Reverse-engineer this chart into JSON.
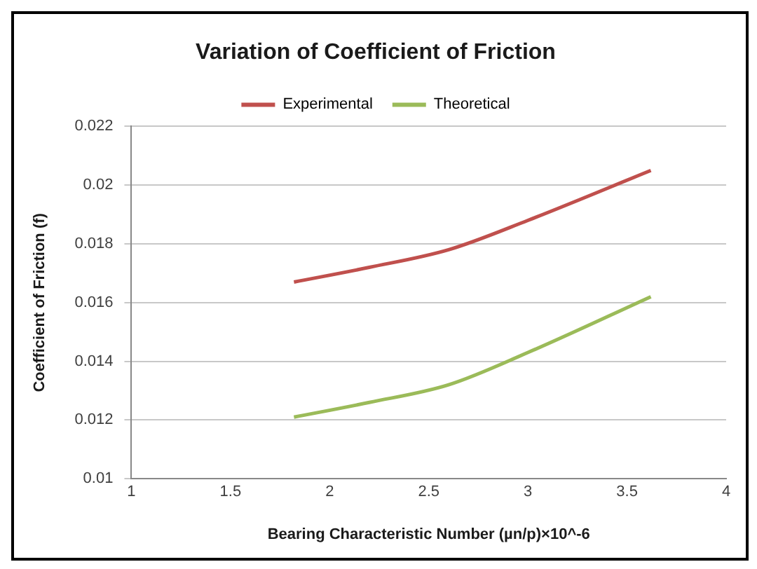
{
  "chart_data": {
    "type": "line",
    "title": "Variation of Coefficient of Friction",
    "xlabel": "Bearing Characteristic Number (µn/p)×10^-6",
    "ylabel": "Coefficient of Friction (f)",
    "x": [
      1.82,
      2.2,
      2.6,
      3.0,
      3.62
    ],
    "series": [
      {
        "name": "Experimental",
        "color": "#c0504d",
        "values": [
          0.0167,
          0.0172,
          0.0178,
          0.0188,
          0.0205
        ]
      },
      {
        "name": "Theoretical",
        "color": "#9bbb59",
        "values": [
          0.0121,
          0.0126,
          0.0132,
          0.0143,
          0.0162
        ]
      }
    ],
    "xlim": [
      1,
      4
    ],
    "xticks": [
      1,
      1.5,
      2,
      2.5,
      3,
      3.5,
      4
    ],
    "ylim": [
      0.01,
      0.022
    ],
    "yticks": [
      0.01,
      0.012,
      0.014,
      0.016,
      0.018,
      0.02,
      0.022
    ],
    "grid": "y",
    "legend": "top",
    "marker": "none",
    "line_style": "solid"
  }
}
